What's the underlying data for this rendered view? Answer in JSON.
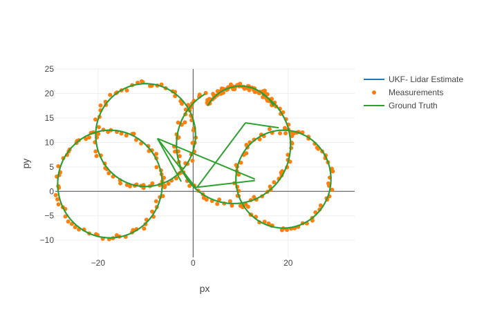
{
  "chart_data": {
    "type": "scatter",
    "title": "",
    "xlabel": "px",
    "ylabel": "py",
    "xlim": [
      -29,
      34
    ],
    "ylim": [
      -13.5,
      25
    ],
    "x_ticks": [
      -20,
      0,
      20
    ],
    "y_ticks": [
      -10,
      -5,
      0,
      5,
      10,
      15,
      20,
      25
    ],
    "x_tick_labels": [
      "−20",
      "0",
      "20"
    ],
    "y_tick_labels": [
      "−10",
      "−5",
      "0",
      "5",
      "10",
      "15",
      "20",
      "25"
    ],
    "grid": true,
    "legend_position": "right-top",
    "legend": [
      "UKF- Lidar Estimate",
      "Measurements",
      "Ground Truth"
    ],
    "colors": {
      "estimate": "#1f77b4",
      "measurements": "#ff7f0e",
      "ground_truth": "#2ca02c"
    },
    "series": [
      {
        "name": "UKF- Lidar Estimate",
        "mode": "lines",
        "description_of_path": "three-lobed figure traced by the filter estimate, overlapping the ground truth"
      },
      {
        "name": "Measurements",
        "mode": "markers"
      },
      {
        "name": "Ground Truth",
        "mode": "lines",
        "path_segments": [
          {
            "type": "arc",
            "center": [
              -10,
              11.5
            ],
            "radius": 10.5,
            "from_deg": -95,
            "to_deg": 268
          },
          {
            "type": "arc",
            "center": [
              10,
              13.5
            ],
            "radius": 8,
            "from_deg": 150,
            "to_deg": 30
          },
          {
            "type": "arc",
            "center": [
              -17.5,
              1.5
            ],
            "radius": 11,
            "from_deg": 0,
            "to_deg": 360
          },
          {
            "type": "arc",
            "center": [
              19,
              2.5
            ],
            "radius": 10,
            "from_deg": 0,
            "to_deg": 360
          },
          {
            "type": "arc",
            "center": [
              8.5,
              9.5
            ],
            "radius": 12,
            "from_deg": 120,
            "to_deg": 420
          }
        ],
        "straight_segments": [
          [
            [
              -7.5,
              10.8
            ],
            [
              0.5,
              0.8
            ]
          ],
          [
            [
              -7.5,
              10.8
            ],
            [
              13,
              2.5
            ]
          ],
          [
            [
              11,
              14
            ],
            [
              0.8,
              0.8
            ]
          ],
          [
            [
              11,
              14
            ],
            [
              18,
              13
            ]
          ],
          [
            [
              0.5,
              0.8
            ],
            [
              13,
              2.2
            ]
          ],
          [
            [
              -7.5,
              10.8
            ],
            [
              -2.5,
              2
            ]
          ]
        ]
      }
    ]
  }
}
